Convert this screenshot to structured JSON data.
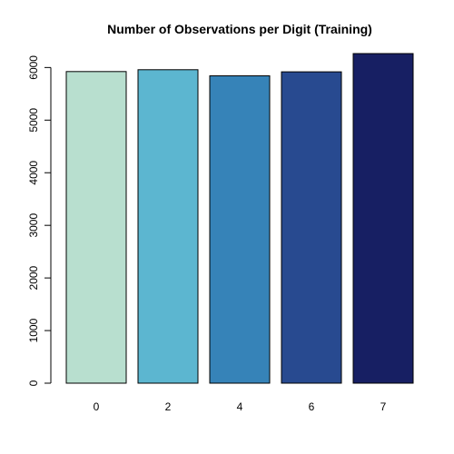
{
  "chart_data": {
    "type": "bar",
    "title": "Number of Observations per Digit (Training)",
    "xlabel": "",
    "ylabel": "",
    "categories": [
      "0",
      "2",
      "4",
      "6",
      "7"
    ],
    "values": [
      5923,
      5958,
      5842,
      5918,
      6265
    ],
    "colors": [
      "#b8dfcf",
      "#5cb6d0",
      "#3683b8",
      "#284a90",
      "#171f63"
    ],
    "ylim": [
      0,
      6265
    ],
    "yticks": [
      0,
      1000,
      2000,
      3000,
      4000,
      5000,
      6000
    ],
    "grid": false,
    "legend": "none"
  }
}
